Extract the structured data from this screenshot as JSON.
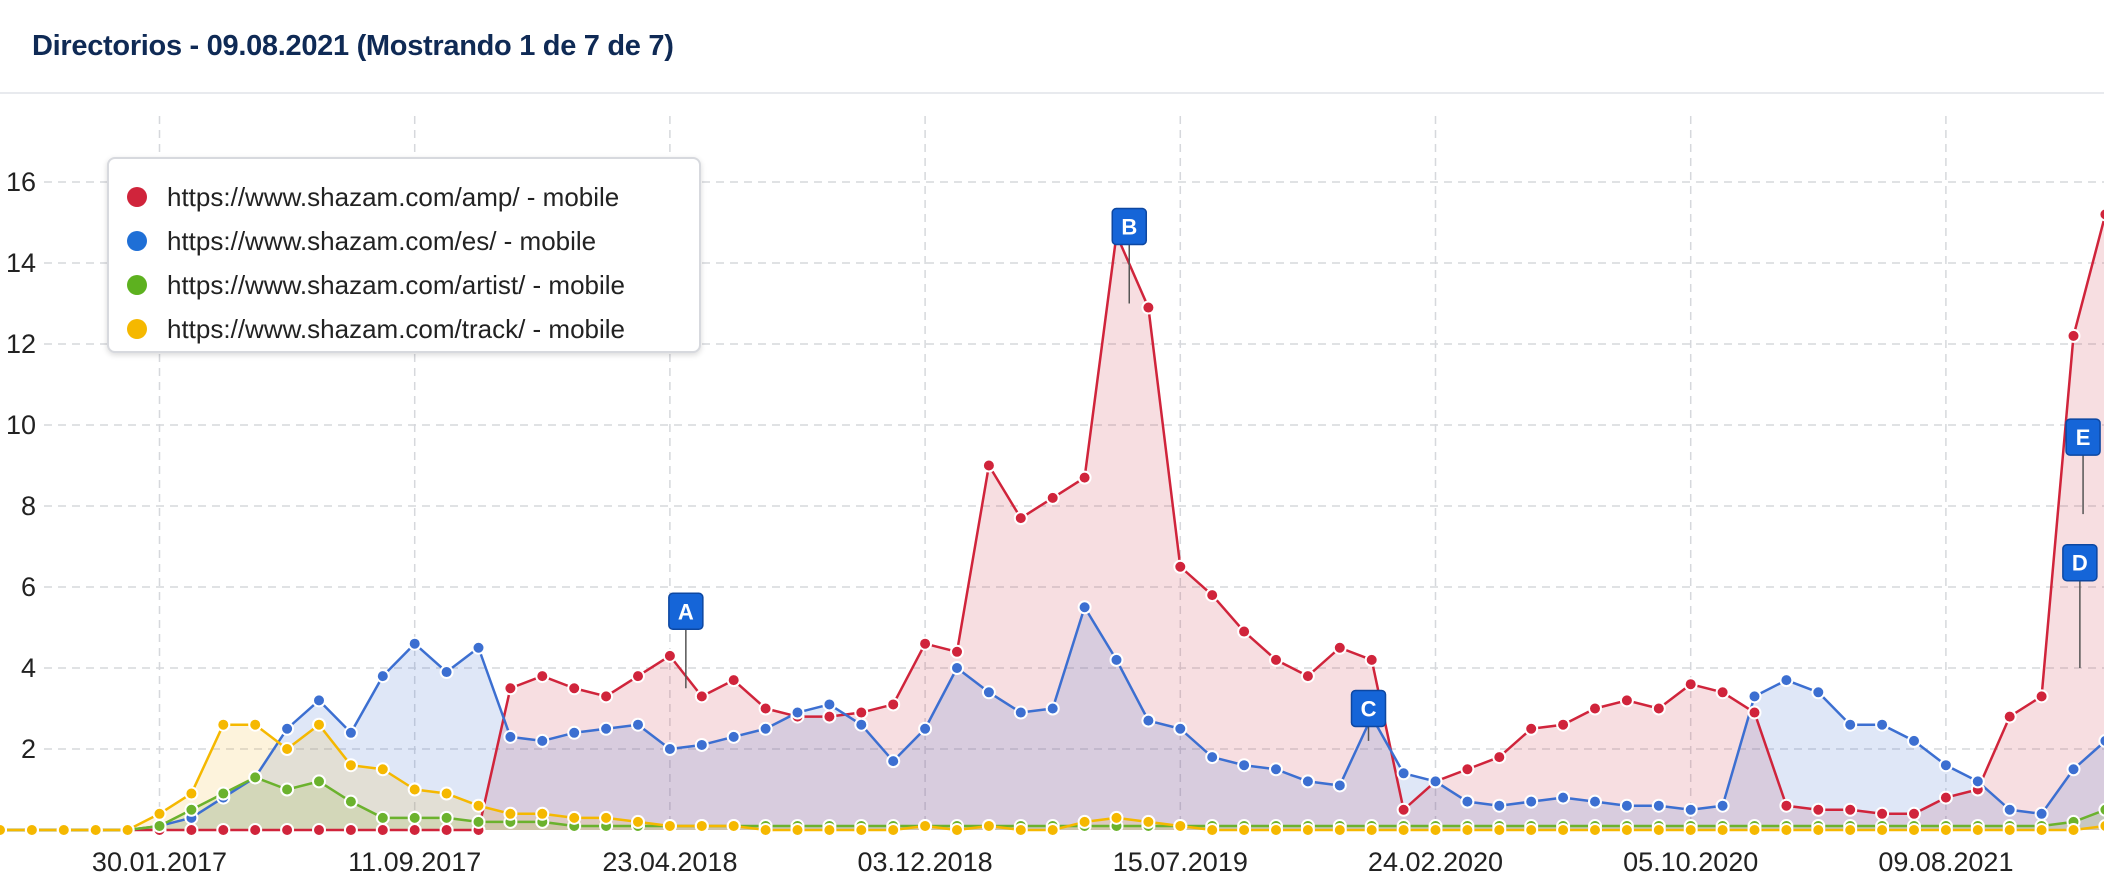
{
  "header": {
    "title": "Directorios - 09.08.2021 (Mostrando 1 de 7 de 7)"
  },
  "chart_data": {
    "type": "area",
    "title": "Directorios - 09.08.2021 (Mostrando 1 de 7 de 7)",
    "xlabel": "",
    "ylabel": "",
    "ylim": [
      0,
      17.6
    ],
    "y_ticks": [
      2,
      4,
      6,
      8,
      10,
      12,
      14,
      16
    ],
    "x_tick_labels": [
      "30.01.2017",
      "11.09.2017",
      "23.04.2018",
      "03.12.2018",
      "15.07.2019",
      "24.02.2020",
      "05.10.2020",
      "09.08.2021"
    ],
    "x_tick_index": [
      5,
      13,
      21,
      29,
      37,
      45,
      53,
      61
    ],
    "grid": true,
    "legend_position": "top-left",
    "series": [
      {
        "name": "https://www.shazam.com/amp/ - mobile",
        "color": "#d0243b",
        "fill": "rgba(210,70,90,0.18)",
        "values": [
          0,
          0,
          0,
          0,
          0,
          0,
          0,
          0,
          0,
          0,
          0,
          0,
          0,
          0,
          0,
          0,
          3.5,
          3.8,
          3.5,
          3.3,
          3.8,
          4.3,
          3.3,
          3.7,
          3.0,
          2.8,
          2.8,
          2.9,
          3.1,
          4.6,
          4.4,
          9.0,
          7.7,
          8.2,
          8.7,
          14.7,
          12.9,
          6.5,
          5.8,
          4.9,
          4.2,
          3.8,
          4.5,
          4.2,
          0.5,
          1.2,
          1.5,
          1.8,
          2.5,
          2.6,
          3.0,
          3.2,
          3.0,
          3.6,
          3.4,
          2.9,
          0.6,
          0.5,
          0.5,
          0.4,
          0.4,
          0.8,
          1.0,
          2.8,
          3.3,
          12.2,
          15.2
        ]
      },
      {
        "name": "https://www.shazam.com/es/ - mobile",
        "color": "#3c6fd1",
        "fill": "rgba(80,120,210,0.18)",
        "values": [
          0,
          0,
          0,
          0,
          0,
          0.1,
          0.3,
          0.8,
          1.3,
          2.5,
          3.2,
          2.4,
          3.8,
          4.6,
          3.9,
          4.5,
          2.3,
          2.2,
          2.4,
          2.5,
          2.6,
          2.0,
          2.1,
          2.3,
          2.5,
          2.9,
          3.1,
          2.6,
          1.7,
          2.5,
          4.0,
          3.4,
          2.9,
          3.0,
          5.5,
          4.2,
          2.7,
          2.5,
          1.8,
          1.6,
          1.5,
          1.2,
          1.1,
          2.8,
          1.4,
          1.2,
          0.7,
          0.6,
          0.7,
          0.8,
          0.7,
          0.6,
          0.6,
          0.5,
          0.6,
          3.3,
          3.7,
          3.4,
          2.6,
          2.6,
          2.2,
          1.6,
          1.2,
          0.5,
          0.4,
          1.5,
          2.2
        ]
      },
      {
        "name": "https://www.shazam.com/artist/ - mobile",
        "color": "#6bb22d",
        "fill": "rgba(120,180,60,0.18)",
        "values": [
          0,
          0,
          0,
          0,
          0,
          0.1,
          0.5,
          0.9,
          1.3,
          1.0,
          1.2,
          0.7,
          0.3,
          0.3,
          0.3,
          0.2,
          0.2,
          0.2,
          0.1,
          0.1,
          0.1,
          0.1,
          0.1,
          0.1,
          0.1,
          0.1,
          0.1,
          0.1,
          0.1,
          0.1,
          0.1,
          0.1,
          0.1,
          0.1,
          0.1,
          0.1,
          0.1,
          0.1,
          0.1,
          0.1,
          0.1,
          0.1,
          0.1,
          0.1,
          0.1,
          0.1,
          0.1,
          0.1,
          0.1,
          0.1,
          0.1,
          0.1,
          0.1,
          0.1,
          0.1,
          0.1,
          0.1,
          0.1,
          0.1,
          0.1,
          0.1,
          0.1,
          0.1,
          0.1,
          0.1,
          0.2,
          0.5
        ]
      },
      {
        "name": "https://www.shazam.com/track/ - mobile",
        "color": "#f5b800",
        "fill": "rgba(245,190,60,0.18)",
        "values": [
          0,
          0,
          0,
          0,
          0,
          0.4,
          0.9,
          2.6,
          2.6,
          2.0,
          2.6,
          1.6,
          1.5,
          1.0,
          0.9,
          0.6,
          0.4,
          0.4,
          0.3,
          0.3,
          0.2,
          0.1,
          0.1,
          0.1,
          0,
          0,
          0,
          0,
          0,
          0.1,
          0,
          0.1,
          0,
          0,
          0.2,
          0.3,
          0.2,
          0.1,
          0,
          0,
          0,
          0,
          0,
          0,
          0,
          0,
          0,
          0,
          0,
          0,
          0,
          0,
          0,
          0,
          0,
          0,
          0,
          0,
          0,
          0,
          0,
          0,
          0,
          0,
          0,
          0,
          0.1
        ]
      }
    ],
    "annotations": [
      {
        "label": "A",
        "x_index": 21.5,
        "y": 5.4,
        "anchor_y": 3.5
      },
      {
        "label": "B",
        "x_index": 35.4,
        "y": 14.9,
        "anchor_y": 13.0
      },
      {
        "label": "C",
        "x_index": 42.9,
        "y": 3.0,
        "anchor_y": 2.2
      },
      {
        "label": "D",
        "x_index": 65.2,
        "y": 6.6,
        "anchor_y": 4.0
      },
      {
        "label": "E",
        "x_index": 65.3,
        "y": 9.7,
        "anchor_y": 7.8
      }
    ]
  }
}
